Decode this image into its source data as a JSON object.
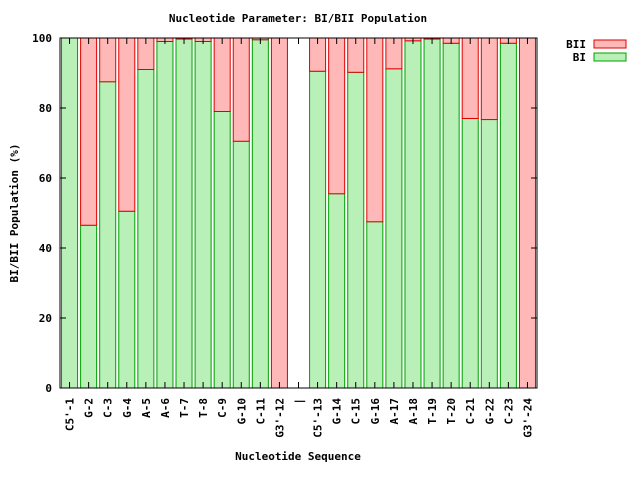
{
  "chart_data": {
    "type": "bar",
    "stacked": true,
    "title": "Nucleotide Parameter: BI/BII Population",
    "xlabel": "Nucleotide Sequence",
    "ylabel": "BI/BII Population (%)",
    "ylim": [
      0,
      100
    ],
    "yticks": [
      0,
      20,
      40,
      60,
      80,
      100
    ],
    "grid": false,
    "legend_position": "top-right",
    "categories": [
      "C5'-1",
      "G-2",
      "C-3",
      "G-4",
      "A-5",
      "A-6",
      "T-7",
      "T-8",
      "C-9",
      "G-10",
      "C-11",
      "G3'-12",
      "|",
      "C5'-13",
      "G-14",
      "C-15",
      "G-16",
      "A-17",
      "A-18",
      "T-19",
      "T-20",
      "C-21",
      "G-22",
      "C-23",
      "G3'-24"
    ],
    "series": [
      {
        "name": "BI",
        "color": "#b8f0b8",
        "stroke": "#00a000",
        "values": [
          100,
          46.5,
          87.5,
          50.5,
          91,
          99,
          99.7,
          99,
          79,
          70.5,
          99.5,
          0,
          null,
          90.5,
          55.5,
          90.2,
          47.5,
          91.2,
          99.2,
          99.7,
          98.5,
          77,
          76.7,
          98.5,
          0
        ]
      },
      {
        "name": "BII",
        "color": "#ffb8b8",
        "stroke": "#e00000",
        "values": [
          0,
          53.5,
          12.5,
          49.5,
          9,
          1,
          0.3,
          1,
          21,
          29.5,
          0.5,
          100,
          null,
          9.5,
          44.5,
          9.8,
          52.5,
          8.8,
          0.8,
          0.3,
          1.5,
          23,
          23.3,
          1.5,
          100
        ]
      }
    ],
    "legend": [
      {
        "name": "BII",
        "color": "#ffb8b8",
        "stroke": "#e00000"
      },
      {
        "name": "BI",
        "color": "#b8f0b8",
        "stroke": "#00a000"
      }
    ]
  }
}
